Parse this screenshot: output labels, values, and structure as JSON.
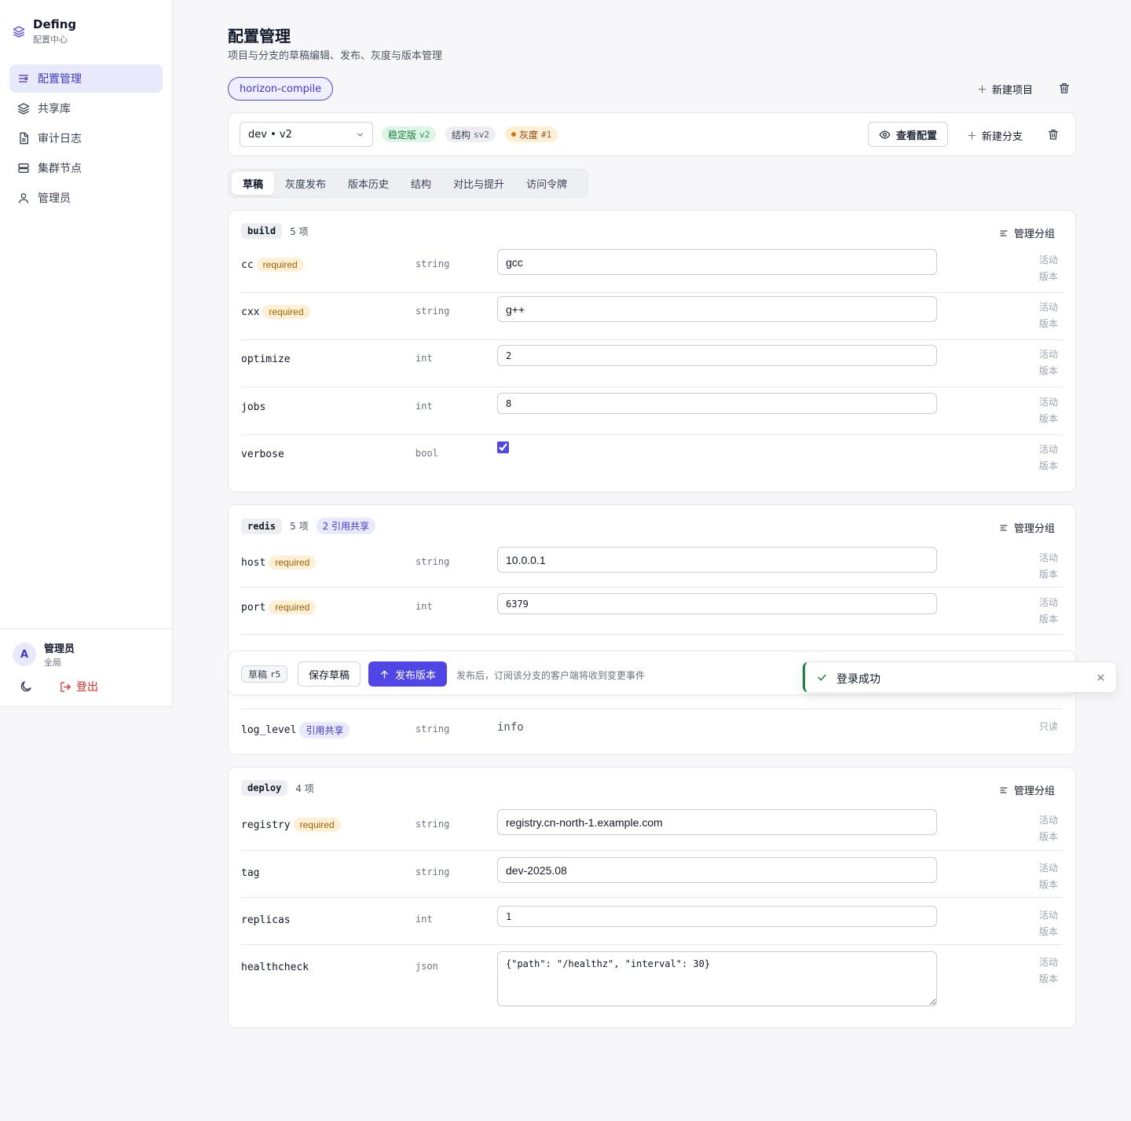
{
  "sidebar": {
    "brand_name": "Defing",
    "brand_sub": "配置中心",
    "items": [
      {
        "label": "配置管理",
        "icon": "sliders-icon",
        "active": true
      },
      {
        "label": "共享库",
        "icon": "layers-icon"
      },
      {
        "label": "审计日志",
        "icon": "document-icon"
      },
      {
        "label": "集群节点",
        "icon": "server-icon"
      },
      {
        "label": "管理员",
        "icon": "user-icon"
      }
    ],
    "user": {
      "avatar": "A",
      "name": "管理员",
      "role": "全局"
    },
    "logout_label": "登出"
  },
  "header": {
    "title": "配置管理",
    "subtitle": "项目与分支的草稿编辑、发布、灰度与版本管理",
    "project": "horizon-compile",
    "new_project": "新建项目"
  },
  "branch": {
    "selected": "dev • v2",
    "stable_label": "稳定版",
    "stable_ver": "v2",
    "struct_label": "结构",
    "struct_ver": "sv2",
    "gray_label": "灰度",
    "gray_ver": "#1",
    "view_config": "查看配置",
    "new_branch": "新建分支"
  },
  "tabs": [
    "草稿",
    "灰度发布",
    "版本历史",
    "结构",
    "对比与提升",
    "访问令牌"
  ],
  "status": {
    "active": "活动",
    "version": "版本",
    "readonly": "只读"
  },
  "required_label": "required",
  "shared_label": "引用共享",
  "manage_group": "管理分组",
  "groups": {
    "build": {
      "name": "build",
      "count": "5 项",
      "fields": [
        {
          "key": "cc",
          "type": "string",
          "value": "gcc"
        },
        {
          "key": "cxx",
          "type": "string",
          "value": "g++"
        },
        {
          "key": "optimize",
          "type": "int",
          "value": "2"
        },
        {
          "key": "jobs",
          "type": "int",
          "value": "8"
        },
        {
          "key": "verbose",
          "type": "bool",
          "value": "true"
        }
      ]
    },
    "redis": {
      "name": "redis",
      "count": "5 项",
      "shared": "2 引用共享",
      "fields": [
        {
          "key": "host",
          "type": "string",
          "value": "10.0.0.1"
        },
        {
          "key": "port",
          "type": "int",
          "value": "6379"
        },
        {
          "key": "log_level",
          "type": "string",
          "value": "info"
        }
      ]
    },
    "deploy": {
      "name": "deploy",
      "count": "4 项",
      "fields": [
        {
          "key": "registry",
          "type": "string",
          "value": "registry.cn-north-1.example.com"
        },
        {
          "key": "tag",
          "type": "string",
          "value": "dev-2025.08"
        },
        {
          "key": "replicas",
          "type": "int",
          "value": "1"
        },
        {
          "key": "healthcheck",
          "type": "json",
          "value": "{\"path\": \"/healthz\", \"interval\": 30}"
        }
      ]
    }
  },
  "action_bar": {
    "draft_label": "草稿",
    "draft_rev": "r5",
    "save": "保存草稿",
    "publish": "发布版本",
    "hint": "发布后，订阅该分支的客户端将收到变更事件"
  },
  "toast": {
    "message": "登录成功"
  }
}
